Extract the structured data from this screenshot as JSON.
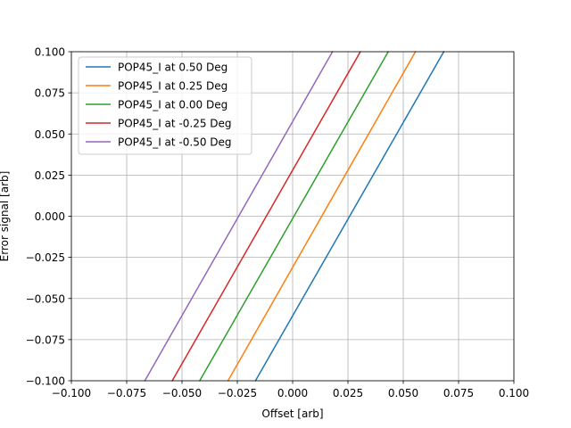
{
  "chart_data": {
    "type": "line",
    "title": "",
    "xlabel": "Offset [arb]",
    "ylabel": "Error signal [arb]",
    "xlim": [
      -0.1,
      0.1
    ],
    "ylim": [
      -0.1,
      0.1
    ],
    "xticks": [
      -0.1,
      -0.075,
      -0.05,
      -0.025,
      0.0,
      0.025,
      0.05,
      0.075,
      0.1
    ],
    "xtick_labels": [
      "−0.100",
      "−0.075",
      "−0.050",
      "−0.025",
      "0.000",
      "0.025",
      "0.050",
      "0.075",
      "0.100"
    ],
    "yticks": [
      -0.1,
      -0.075,
      -0.05,
      -0.025,
      0.0,
      0.025,
      0.05,
      0.075,
      0.1
    ],
    "ytick_labels": [
      "−0.100",
      "−0.075",
      "−0.050",
      "−0.025",
      "0.000",
      "0.025",
      "0.050",
      "0.075",
      "0.100"
    ],
    "grid": true,
    "legend_position": "top-left",
    "series": [
      {
        "name": "POP45_I at 0.50 Deg",
        "color": "#1f77b4",
        "x": [
          -0.0168,
          0.0683
        ],
        "y": [
          -0.1,
          0.1
        ]
      },
      {
        "name": "POP45_I at 0.25 Deg",
        "color": "#ff7f0e",
        "x": [
          -0.0292,
          0.0555
        ],
        "y": [
          -0.1,
          0.1
        ]
      },
      {
        "name": "POP45_I at 0.00 Deg",
        "color": "#2ca02c",
        "x": [
          -0.042,
          0.0432
        ],
        "y": [
          -0.1,
          0.1
        ]
      },
      {
        "name": "POP45_I at -0.25 Deg",
        "color": "#d62728",
        "x": [
          -0.0544,
          0.0306
        ],
        "y": [
          -0.1,
          0.1
        ]
      },
      {
        "name": "POP45_I at -0.50 Deg",
        "color": "#9467bd",
        "x": [
          -0.0668,
          0.018
        ],
        "y": [
          -0.1,
          0.1
        ]
      }
    ]
  }
}
